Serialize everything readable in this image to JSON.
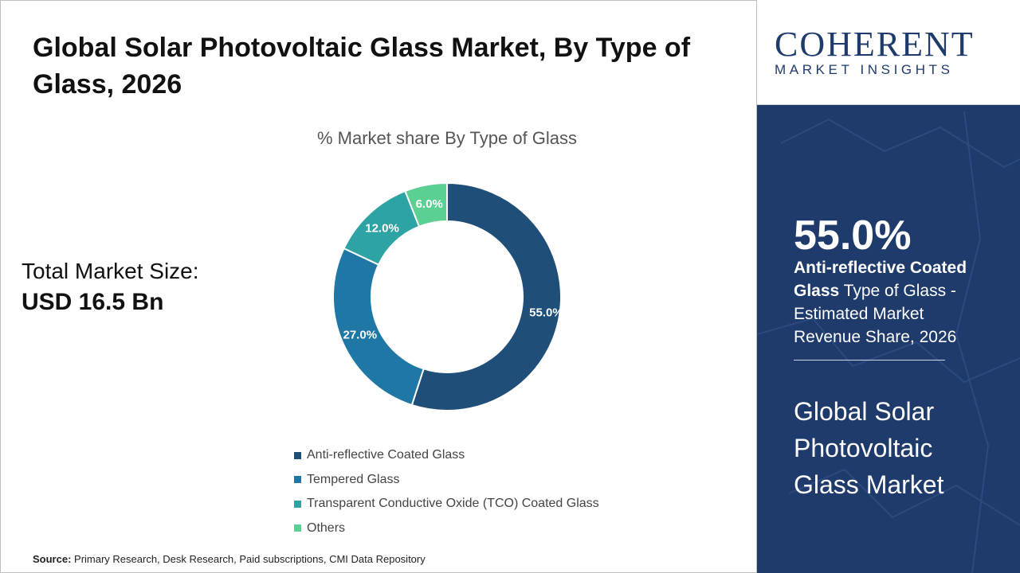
{
  "title": "Global Solar Photovoltaic Glass Market, By Type of Glass, 2026",
  "market_size": {
    "label": "Total Market Size:",
    "value": "USD 16.5 Bn"
  },
  "source": {
    "label": "Source:",
    "text": "Primary Research, Desk Research, Paid subscriptions, CMI Data Repository"
  },
  "logo": {
    "main": "COHERENT",
    "sub": "MARKET INSIGHTS"
  },
  "highlight": {
    "value": "55.0%",
    "bold_text": "Anti-reflective Coated Glass",
    "rest_text": " Type of Glass - Estimated Market Revenue Share, 2026",
    "market_name": "Global Solar Photovoltaic Glass Market"
  },
  "chart_data": {
    "type": "pie",
    "title": "% Market share By Type of Glass",
    "categories": [
      "Anti-reflective Coated Glass",
      "Tempered Glass",
      "Transparent Conductive Oxide (TCO) Coated Glass",
      "Others"
    ],
    "values": [
      55.0,
      27.0,
      12.0,
      6.0
    ],
    "data_labels": [
      "55.0%",
      "27.0%",
      "12.0%",
      "6.0%"
    ],
    "colors": [
      "#1f4e79",
      "#1f77a6",
      "#2ea3a3",
      "#5ccf93"
    ],
    "donut": true,
    "legend_position": "bottom"
  },
  "colors": {
    "panel_bg": "#1f3b6b",
    "logo": "#1f3b6b"
  }
}
